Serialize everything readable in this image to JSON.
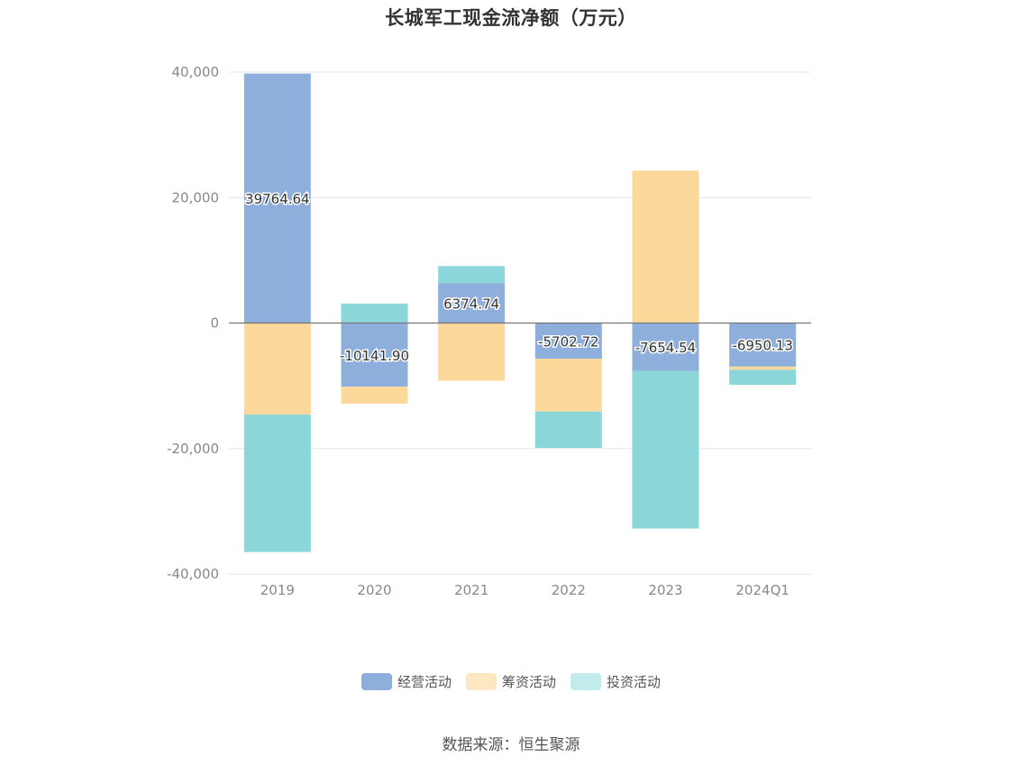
{
  "chart_data": {
    "type": "bar",
    "stacked": true,
    "title": "长城军工现金流净额（万元）",
    "categories": [
      "2019",
      "2020",
      "2021",
      "2022",
      "2023",
      "2024Q1"
    ],
    "series": [
      {
        "name": "经营活动",
        "color": "#8eaedb",
        "values": [
          39764.64,
          -10141.9,
          6374.74,
          -5702.72,
          -7654.54,
          -6950.13
        ],
        "labels": [
          "39764.64",
          "-10141.90",
          "6374.74",
          "-5702.72",
          "-7654.54",
          "-6950.13"
        ]
      },
      {
        "name": "筹资活动",
        "color": "#fdd89b",
        "legend_color": "#fde6c2",
        "values": [
          -14600,
          -2700,
          -9200,
          -8400,
          24300,
          -500
        ]
      },
      {
        "name": "投资活动",
        "color": "#8ad6d9",
        "legend_color": "#c2ebec",
        "values": [
          -21900,
          3100,
          2700,
          -5800,
          -25100,
          -2400
        ]
      }
    ],
    "ylim": [
      -40000,
      40000
    ],
    "yticks": [
      40000,
      20000,
      0,
      -20000,
      -40000
    ],
    "ytick_labels": [
      "40,000",
      "20,000",
      "0",
      "-20,000",
      "-40,000"
    ],
    "grid": true,
    "legend_position": "bottom"
  },
  "source": "数据来源：恒生聚源"
}
